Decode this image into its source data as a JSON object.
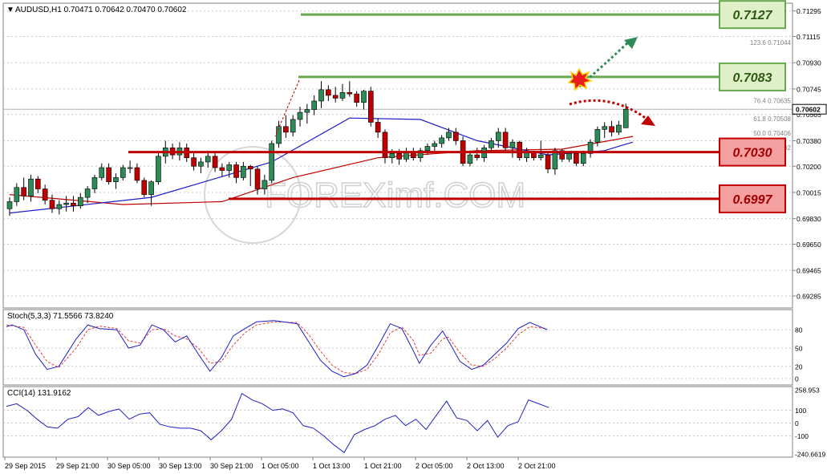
{
  "main_header": "AUDUSD,H1  0.70471 0.70642 0.70470 0.70602",
  "stoch_header": "Stoch(5,3,3) 71.5566 73.8240",
  "cci_header": "CCI(14) 131.9162",
  "watermark": "FOREXimf.COM",
  "current_price": "0.70602",
  "price_axis": [
    "0.71295",
    "0.71115",
    "0.70930",
    "0.70745",
    "0.70565",
    "0.70380",
    "0.70200",
    "0.70015",
    "0.69830",
    "0.69650",
    "0.69465",
    "0.69285"
  ],
  "stoch_axis": [
    "80",
    "50",
    "20",
    "0"
  ],
  "cci_axis": [
    "258.953",
    "100",
    "0",
    "-100",
    "-240.6619"
  ],
  "time_axis": [
    "29 Sep 2015",
    "29 Sep 21:00",
    "30 Sep 05:00",
    "30 Sep 13:00",
    "30 Sep 21:00",
    "1 Oct 05:00",
    "1 Oct 13:00",
    "1 Oct 21:00",
    "2 Oct 05:00",
    "2 Oct 13:00",
    "2 Oct 21:00"
  ],
  "fib_labels": [
    {
      "text": "123.6  0.71044",
      "price": 0.71044
    },
    {
      "text": "76.4  0.70635",
      "price": 0.70635
    },
    {
      "text": "61.8  0.70508",
      "price": 0.70508
    },
    {
      "text": "50.0  0.70406",
      "price": 0.70406
    },
    {
      "text": "38.2  0.70302",
      "price": 0.70302
    }
  ],
  "levels": [
    {
      "label": "0.7127",
      "price": 0.7127,
      "kind": "resistance",
      "color": "#6aa84f",
      "fill": "#dff0c8"
    },
    {
      "label": "0.7083",
      "price": 0.7083,
      "kind": "resistance",
      "color": "#6aa84f",
      "fill": "#dff0c8"
    },
    {
      "label": "0.7030",
      "price": 0.703,
      "kind": "support",
      "color": "#c00000",
      "fill": "#f4a0a0"
    },
    {
      "label": "0.6997",
      "price": 0.6997,
      "kind": "support",
      "color": "#c00000",
      "fill": "#f4a0a0"
    }
  ],
  "chart_data": {
    "type": "candlestick",
    "symbol": "AUDUSD",
    "timeframe": "H1",
    "ohlc": {
      "open": 0.70471,
      "high": 0.70642,
      "low": 0.7047,
      "close": 0.70602
    },
    "ylim": [
      0.692,
      0.7135
    ],
    "candles": [
      [
        0.699,
        0.6998,
        0.6985,
        0.6995
      ],
      [
        0.6995,
        0.7008,
        0.6992,
        0.7005
      ],
      [
        0.7005,
        0.7012,
        0.6996,
        0.6999
      ],
      [
        0.6999,
        0.7014,
        0.6995,
        0.7011
      ],
      [
        0.7011,
        0.7013,
        0.7001,
        0.7004
      ],
      [
        0.7004,
        0.7007,
        0.6993,
        0.6996
      ],
      [
        0.6996,
        0.7,
        0.6987,
        0.699
      ],
      [
        0.699,
        0.6996,
        0.6986,
        0.6993
      ],
      [
        0.6993,
        0.6999,
        0.6988,
        0.6994
      ],
      [
        0.6994,
        0.6999,
        0.6988,
        0.6992
      ],
      [
        0.6992,
        0.7001,
        0.699,
        0.6998
      ],
      [
        0.6998,
        0.7006,
        0.6994,
        0.7004
      ],
      [
        0.7004,
        0.7014,
        0.7001,
        0.7012
      ],
      [
        0.7012,
        0.7022,
        0.701,
        0.7019
      ],
      [
        0.7019,
        0.7022,
        0.7007,
        0.7009
      ],
      [
        0.7009,
        0.7015,
        0.7004,
        0.7012
      ],
      [
        0.7012,
        0.7021,
        0.701,
        0.7019
      ],
      [
        0.7019,
        0.7024,
        0.7015,
        0.7019
      ],
      [
        0.7019,
        0.7022,
        0.7008,
        0.701
      ],
      [
        0.701,
        0.7012,
        0.6998,
        0.7
      ],
      [
        0.7,
        0.701,
        0.6992,
        0.7009
      ],
      [
        0.7009,
        0.703,
        0.7007,
        0.7027
      ],
      [
        0.7027,
        0.7038,
        0.7022,
        0.7033
      ],
      [
        0.7033,
        0.7036,
        0.7025,
        0.7028
      ],
      [
        0.7028,
        0.7037,
        0.7024,
        0.7033
      ],
      [
        0.7033,
        0.7036,
        0.7023,
        0.7026
      ],
      [
        0.7026,
        0.703,
        0.7017,
        0.702
      ],
      [
        0.702,
        0.7026,
        0.7015,
        0.7023
      ],
      [
        0.7023,
        0.703,
        0.7019,
        0.7027
      ],
      [
        0.7027,
        0.703,
        0.7016,
        0.7019
      ],
      [
        0.7019,
        0.7022,
        0.7013,
        0.7017
      ],
      [
        0.7017,
        0.7023,
        0.7012,
        0.7021
      ],
      [
        0.7021,
        0.7023,
        0.7008,
        0.7012
      ],
      [
        0.7012,
        0.7023,
        0.701,
        0.702
      ],
      [
        0.702,
        0.7021,
        0.7006,
        0.7018
      ],
      [
        0.7018,
        0.702,
        0.7,
        0.7004
      ],
      [
        0.7004,
        0.7014,
        0.7,
        0.701
      ],
      [
        0.701,
        0.7038,
        0.7008,
        0.7036
      ],
      [
        0.7036,
        0.7052,
        0.7033,
        0.7048
      ],
      [
        0.7048,
        0.7056,
        0.704,
        0.7044
      ],
      [
        0.7044,
        0.7056,
        0.7041,
        0.7053
      ],
      [
        0.7053,
        0.7062,
        0.7048,
        0.7058
      ],
      [
        0.7058,
        0.7064,
        0.705,
        0.706
      ],
      [
        0.706,
        0.707,
        0.7056,
        0.7066
      ],
      [
        0.7066,
        0.708,
        0.7061,
        0.7074
      ],
      [
        0.7074,
        0.7077,
        0.7066,
        0.707
      ],
      [
        0.707,
        0.7076,
        0.7065,
        0.7068
      ],
      [
        0.7068,
        0.7078,
        0.7066,
        0.7072
      ],
      [
        0.7072,
        0.708,
        0.7069,
        0.7071
      ],
      [
        0.7071,
        0.7073,
        0.7062,
        0.7065
      ],
      [
        0.7065,
        0.7074,
        0.706,
        0.7073
      ],
      [
        0.7073,
        0.7076,
        0.7048,
        0.7051
      ],
      [
        0.7051,
        0.7054,
        0.704,
        0.7044
      ],
      [
        0.7044,
        0.7046,
        0.7022,
        0.7026
      ],
      [
        0.7026,
        0.7032,
        0.7022,
        0.7029
      ],
      [
        0.7029,
        0.7032,
        0.7021,
        0.7025
      ],
      [
        0.7025,
        0.7033,
        0.7023,
        0.703
      ],
      [
        0.703,
        0.7033,
        0.7024,
        0.7026
      ],
      [
        0.7026,
        0.7033,
        0.7023,
        0.7031
      ],
      [
        0.7031,
        0.7036,
        0.7028,
        0.7034
      ],
      [
        0.7034,
        0.7038,
        0.7031,
        0.7036
      ],
      [
        0.7036,
        0.7042,
        0.7033,
        0.704
      ],
      [
        0.704,
        0.7047,
        0.7038,
        0.7044
      ],
      [
        0.7044,
        0.7047,
        0.7035,
        0.7038
      ],
      [
        0.7038,
        0.7041,
        0.702,
        0.7022
      ],
      [
        0.7022,
        0.7031,
        0.702,
        0.7028
      ],
      [
        0.7028,
        0.7033,
        0.7024,
        0.7026
      ],
      [
        0.7026,
        0.7035,
        0.7023,
        0.7033
      ],
      [
        0.7033,
        0.704,
        0.703,
        0.7038
      ],
      [
        0.7038,
        0.7047,
        0.7033,
        0.7044
      ],
      [
        0.7044,
        0.7047,
        0.7031,
        0.7033
      ],
      [
        0.7033,
        0.7039,
        0.7026,
        0.7037
      ],
      [
        0.7037,
        0.7038,
        0.7024,
        0.7026
      ],
      [
        0.7026,
        0.7033,
        0.7023,
        0.703
      ],
      [
        0.703,
        0.7031,
        0.7024,
        0.7026
      ],
      [
        0.7026,
        0.7038,
        0.7024,
        0.7028
      ],
      [
        0.7028,
        0.703,
        0.7015,
        0.7018
      ],
      [
        0.7018,
        0.7033,
        0.7014,
        0.7031
      ],
      [
        0.7031,
        0.7032,
        0.7023,
        0.7025
      ],
      [
        0.7025,
        0.703,
        0.7023,
        0.7029
      ],
      [
        0.7029,
        0.703,
        0.702,
        0.7022
      ],
      [
        0.7022,
        0.7031,
        0.702,
        0.7029
      ],
      [
        0.7029,
        0.7039,
        0.7026,
        0.7037
      ],
      [
        0.7037,
        0.7048,
        0.7034,
        0.7046
      ],
      [
        0.7046,
        0.7051,
        0.704,
        0.7048
      ],
      [
        0.7048,
        0.7052,
        0.7041,
        0.7044
      ],
      [
        0.7044,
        0.7052,
        0.7042,
        0.7049
      ],
      [
        0.70471,
        0.70642,
        0.7047,
        0.70602
      ]
    ],
    "ma_blue": [
      [
        0,
        0.6987
      ],
      [
        20,
        0.6998
      ],
      [
        37,
        0.7023
      ],
      [
        48,
        0.7054
      ],
      [
        58,
        0.7053
      ],
      [
        66,
        0.7038
      ],
      [
        76,
        0.7028
      ],
      [
        84,
        0.7031
      ],
      [
        88,
        0.7037
      ]
    ],
    "ma_red": [
      [
        0,
        0.7
      ],
      [
        16,
        0.6993
      ],
      [
        30,
        0.6995
      ],
      [
        40,
        0.7012
      ],
      [
        52,
        0.7026
      ],
      [
        66,
        0.7031
      ],
      [
        78,
        0.7032
      ],
      [
        88,
        0.7041
      ]
    ],
    "stoch_main": [
      [
        0,
        85
      ],
      [
        1,
        88
      ],
      [
        3,
        80
      ],
      [
        5,
        40
      ],
      [
        7,
        15
      ],
      [
        9,
        20
      ],
      [
        12,
        65
      ],
      [
        14,
        88
      ],
      [
        16,
        82
      ],
      [
        19,
        80
      ],
      [
        21,
        50
      ],
      [
        23,
        55
      ],
      [
        25,
        88
      ],
      [
        27,
        80
      ],
      [
        29,
        60
      ],
      [
        31,
        70
      ],
      [
        33,
        40
      ],
      [
        35,
        12
      ],
      [
        37,
        35
      ],
      [
        39,
        70
      ],
      [
        41,
        82
      ],
      [
        43,
        93
      ],
      [
        46,
        95
      ],
      [
        50,
        90
      ],
      [
        52,
        60
      ],
      [
        54,
        30
      ],
      [
        56,
        12
      ],
      [
        58,
        3
      ],
      [
        60,
        8
      ],
      [
        62,
        22
      ],
      [
        64,
        55
      ],
      [
        66,
        90
      ],
      [
        68,
        82
      ],
      [
        70,
        45
      ],
      [
        71,
        25
      ],
      [
        73,
        55
      ],
      [
        75,
        78
      ],
      [
        76,
        62
      ],
      [
        78,
        28
      ],
      [
        80,
        15
      ],
      [
        82,
        22
      ],
      [
        84,
        40
      ],
      [
        86,
        58
      ],
      [
        88,
        82
      ],
      [
        90,
        92
      ],
      [
        93,
        80
      ]
    ],
    "stoch_signal": [
      [
        0,
        88
      ],
      [
        3,
        84
      ],
      [
        5,
        55
      ],
      [
        7,
        28
      ],
      [
        9,
        18
      ],
      [
        12,
        50
      ],
      [
        14,
        80
      ],
      [
        16,
        86
      ],
      [
        19,
        82
      ],
      [
        21,
        62
      ],
      [
        23,
        58
      ],
      [
        25,
        80
      ],
      [
        27,
        82
      ],
      [
        29,
        70
      ],
      [
        31,
        65
      ],
      [
        33,
        50
      ],
      [
        35,
        25
      ],
      [
        37,
        28
      ],
      [
        39,
        55
      ],
      [
        41,
        75
      ],
      [
        43,
        88
      ],
      [
        46,
        93
      ],
      [
        50,
        92
      ],
      [
        52,
        72
      ],
      [
        54,
        45
      ],
      [
        56,
        22
      ],
      [
        58,
        10
      ],
      [
        60,
        8
      ],
      [
        62,
        15
      ],
      [
        64,
        40
      ],
      [
        66,
        75
      ],
      [
        68,
        85
      ],
      [
        70,
        62
      ],
      [
        71,
        38
      ],
      [
        73,
        42
      ],
      [
        75,
        65
      ],
      [
        76,
        68
      ],
      [
        78,
        42
      ],
      [
        80,
        22
      ],
      [
        82,
        20
      ],
      [
        84,
        33
      ],
      [
        86,
        50
      ],
      [
        88,
        72
      ],
      [
        90,
        85
      ],
      [
        93,
        82
      ]
    ],
    "cci": [
      [
        0,
        130
      ],
      [
        2,
        150
      ],
      [
        4,
        100
      ],
      [
        6,
        30
      ],
      [
        8,
        -30
      ],
      [
        10,
        -40
      ],
      [
        12,
        30
      ],
      [
        14,
        50
      ],
      [
        16,
        120
      ],
      [
        18,
        60
      ],
      [
        20,
        90
      ],
      [
        22,
        110
      ],
      [
        24,
        30
      ],
      [
        26,
        70
      ],
      [
        28,
        80
      ],
      [
        30,
        -10
      ],
      [
        32,
        -30
      ],
      [
        34,
        -40
      ],
      [
        36,
        -40
      ],
      [
        38,
        -60
      ],
      [
        40,
        -130
      ],
      [
        42,
        -60
      ],
      [
        44,
        30
      ],
      [
        46,
        230
      ],
      [
        48,
        180
      ],
      [
        50,
        150
      ],
      [
        52,
        100
      ],
      [
        54,
        110
      ],
      [
        56,
        80
      ],
      [
        58,
        -20
      ],
      [
        60,
        -40
      ],
      [
        62,
        -100
      ],
      [
        64,
        -170
      ],
      [
        66,
        -230
      ],
      [
        68,
        -90
      ],
      [
        70,
        -50
      ],
      [
        72,
        -20
      ],
      [
        74,
        30
      ],
      [
        76,
        60
      ],
      [
        78,
        -20
      ],
      [
        80,
        30
      ],
      [
        82,
        -50
      ],
      [
        84,
        60
      ],
      [
        86,
        170
      ],
      [
        88,
        40
      ],
      [
        90,
        20
      ],
      [
        92,
        -60
      ],
      [
        94,
        20
      ],
      [
        96,
        -110
      ],
      [
        98,
        -20
      ],
      [
        100,
        10
      ],
      [
        102,
        180
      ],
      [
        104,
        150
      ],
      [
        106,
        120
      ]
    ],
    "stoch_levels": [
      80,
      50,
      20,
      0
    ],
    "cci_levels": [
      258.953,
      100,
      0,
      -100,
      -240.6619
    ],
    "colors": {
      "bull": "#2e8b57",
      "bear": "#c00000",
      "ma_blue": "#1e1ec8",
      "ma_red": "#c00000",
      "stoch_signal": "#e04040",
      "grid": "#c8c8c8"
    }
  }
}
